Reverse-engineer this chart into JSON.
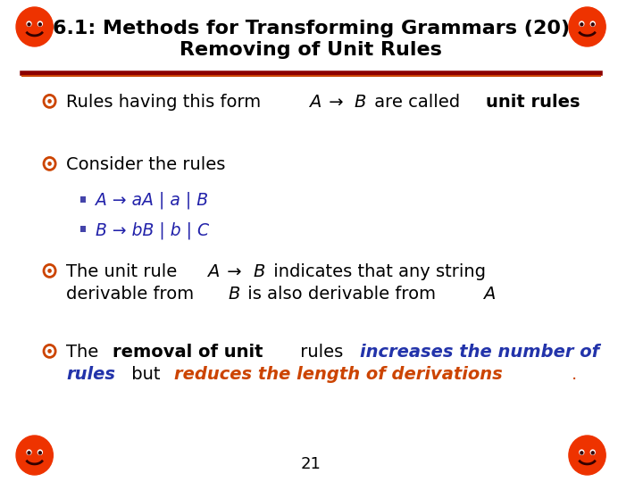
{
  "title_line1": "6.1: Methods for Transforming Grammars (20)",
  "title_line2": "Removing of Unit Rules",
  "bg_color": "#ffffff",
  "page_number": "21",
  "title_fontsize": 16,
  "body_fontsize": 14,
  "sub_fontsize": 13.5
}
